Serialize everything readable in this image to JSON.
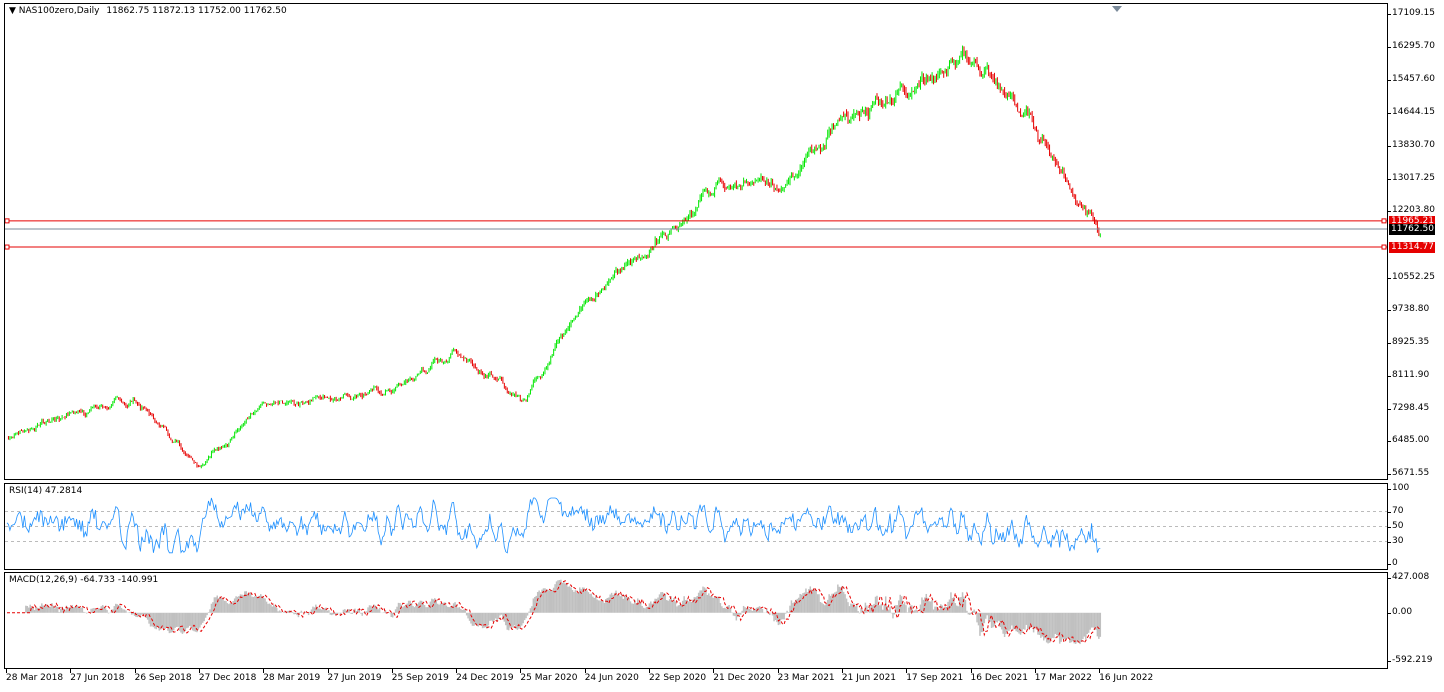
{
  "colors": {
    "up": "#00e600",
    "down": "#e60000",
    "hline": "#e60000",
    "bid": "#7a8a9a",
    "rsi": "#1e90ff",
    "macd_hist": "#c0c0c0",
    "macd_signal": "#e60000"
  },
  "main": {
    "symbol_label": "NAS100zero,Daily",
    "ohlc": "11862.75 11872.13 11752.00 11762.50",
    "y_ticks": [
      "17109.15",
      "16295.70",
      "15457.60",
      "14644.15",
      "13830.70",
      "13017.25",
      "12203.80",
      "10552.25",
      "9738.80",
      "8925.35",
      "8111.90",
      "7298.45",
      "6485.00",
      "5671.55"
    ],
    "tag_upper": "11965.21",
    "tag_price": "11762.50",
    "tag_lower": "11314.77"
  },
  "rsi": {
    "label": "RSI(14) 47.2814",
    "y_ticks": [
      "100",
      "70",
      "50",
      "30",
      "0"
    ]
  },
  "macd": {
    "label": "MACD(12,26,9) -64.733 -140.991",
    "y_ticks": [
      "427.008",
      "0.00",
      "-592.219"
    ]
  },
  "x_ticks": [
    "28 Mar 2018",
    "27 Jun 2018",
    "26 Sep 2018",
    "27 Dec 2018",
    "28 Mar 2019",
    "27 Jun 2019",
    "25 Sep 2019",
    "24 Dec 2019",
    "25 Mar 2020",
    "24 Jun 2020",
    "22 Sep 2020",
    "21 Dec 2020",
    "23 Mar 2021",
    "21 Jun 2021",
    "17 Sep 2021",
    "16 Dec 2021",
    "17 Mar 2022",
    "16 Jun 2022"
  ],
  "chart_data": {
    "type": "candlestick",
    "title": "NAS100zero,Daily",
    "ylim": [
      5671.55,
      17109.15
    ],
    "points": [
      {
        "x": "28 Mar 2018",
        "y": 6600
      },
      {
        "x": "27 Jun 2018",
        "y": 7200
      },
      {
        "x": "26 Sep 2018",
        "y": 7500
      },
      {
        "x": "27 Dec 2018",
        "y": 5900
      },
      {
        "x": "28 Mar 2019",
        "y": 7350
      },
      {
        "x": "27 Jun 2019",
        "y": 7600
      },
      {
        "x": "25 Sep 2019",
        "y": 7750
      },
      {
        "x": "24 Dec 2019",
        "y": 8750
      },
      {
        "x": "25 Mar 2020",
        "y": 7500
      },
      {
        "x": "24 Jun 2020",
        "y": 10000
      },
      {
        "x": "22 Sep 2020",
        "y": 11300
      },
      {
        "x": "21 Dec 2020",
        "y": 12800
      },
      {
        "x": "23 Mar 2021",
        "y": 12900
      },
      {
        "x": "21 Jun 2021",
        "y": 14400
      },
      {
        "x": "17 Sep 2021",
        "y": 15300
      },
      {
        "x": "16 Dec 2021",
        "y": 16000
      },
      {
        "x": "17 Mar 2022",
        "y": 14300
      },
      {
        "x": "16 Jun 2022",
        "y": 11600
      }
    ],
    "horizontal_lines": [
      11965.21,
      11314.77
    ],
    "last_price": 11762.5,
    "rsi": {
      "period": 14,
      "last": 47.2814,
      "levels": [
        70,
        50,
        30
      ],
      "ylim": [
        0,
        100
      ]
    },
    "macd": {
      "params": [
        12,
        26,
        9
      ],
      "main": -64.733,
      "signal": -140.991,
      "ylim": [
        -592.219,
        427.008
      ]
    }
  }
}
